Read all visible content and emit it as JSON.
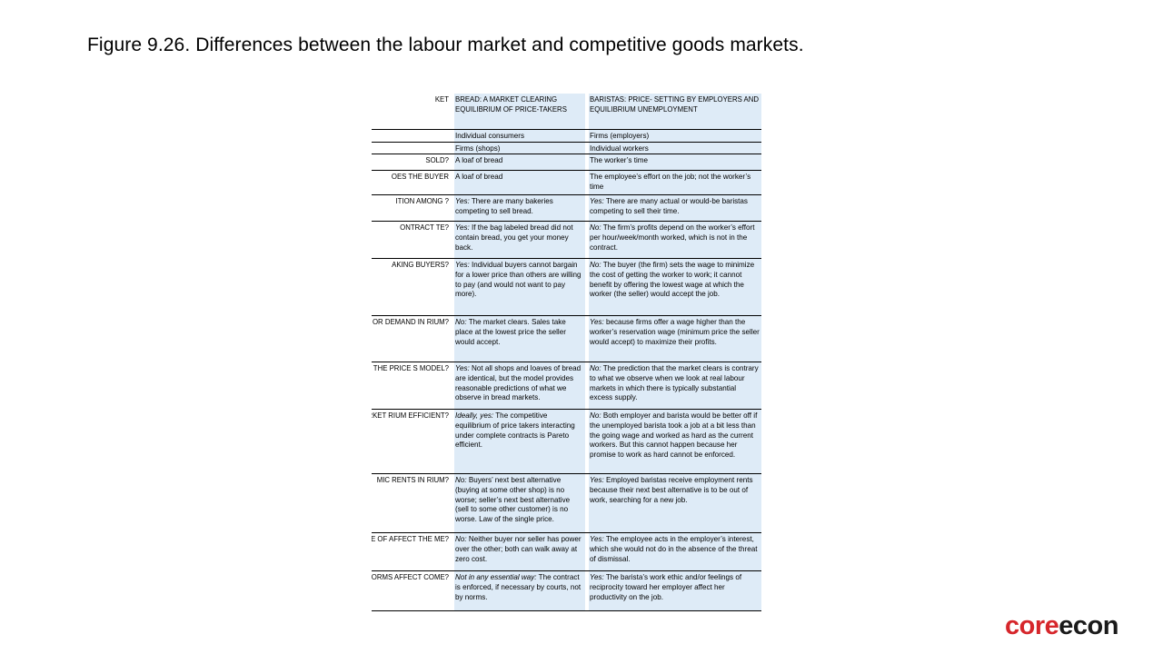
{
  "title": "Figure 9.26. Differences between the labour market and competitive goods markets.",
  "logo": {
    "part1": "core",
    "part2": "econ"
  },
  "table": {
    "headers": {
      "label": "KET",
      "bread": "BREAD: A MARKET CLEARING EQUILIBRIUM OF PRICE-TAKERS",
      "baristas": "BARISTAS: PRICE- SETTING BY EMPLOYERS AND EQUILIBRIUM UNEMPLOYMENT"
    },
    "rows": [
      {
        "label": "",
        "bread_em": "",
        "bread": "Individual consumers",
        "baristas_em": "",
        "baristas": "Firms (employers)"
      },
      {
        "label": "",
        "bread_em": "",
        "bread": "Firms (shops)",
        "baristas_em": "",
        "baristas": "Individual workers"
      },
      {
        "label": "SOLD?",
        "bread_em": "",
        "bread": "A loaf of bread",
        "baristas_em": "",
        "baristas": "The worker’s time"
      },
      {
        "label": "OES THE BUYER",
        "bread_em": "",
        "bread": "A loaf of bread",
        "baristas_em": "",
        "baristas": "The employee’s effort on the job; not the worker’s time"
      },
      {
        "label": "ITION AMONG ?",
        "bread_em": "Yes:",
        "bread": " There are many bakeries competing to sell bread.",
        "baristas_em": "Yes:",
        "baristas": " There are many actual or would-be baristas competing to sell their time."
      },
      {
        "label": "ONTRACT TE?",
        "bread_em": "Yes:",
        "bread": " If the bag labeled bread did not contain bread, you get your money back.",
        "baristas_em": "No:",
        "baristas": " The firm’s profits depend on the worker’s effort per hour/week/month worked, which is not in the contract."
      },
      {
        "label": "AKING BUYERS?",
        "bread_em": "Yes:",
        "bread": " Individual buyers cannot bargain for a lower price than others are willing to pay (and would not want to pay more).",
        "baristas_em": "No:",
        "baristas": " The buyer (the firm) sets the wage to minimize the cost of getting the worker to work; it cannot benefit by offering the lowest wage at which the worker (the seller) would accept the job."
      },
      {
        "label": "EXCESS OR DEMAND IN RIUM?",
        "bread_em": "No:",
        "bread": " The market clears. Sales take place at the lowest price the seller would accept.",
        "baristas_em": "Yes:",
        "baristas": " because firms offer a wage higher than the worker’s reservation wage (minimum price the seller would accept) to maximize their profits."
      },
      {
        "label": "USE THE PRICE S MODEL?",
        "bread_em": "Yes:",
        "bread": " Not all shops and loaves of bread are identical, but the model provides reasonable predictions of what we observe in bread markets.",
        "baristas_em": "No:",
        "baristas": " The prediction that the market clears is contrary to what we observe when we look at real labour markets in which there is typically substantial excess supply."
      },
      {
        "label": "ARKET RIUM EFFICIENT?",
        "bread_em": "Ideally, yes:",
        "bread": " The competitive equilibrium of price takers interacting under complete contracts is Pareto efficient.",
        "baristas_em": "No:",
        "baristas": " Both employer and barista would be better off if the unemployed barista took a job at a bit less than the going wage and worked as hard as the current workers. But this cannot happen because her promise to work as hard cannot be enforced."
      },
      {
        "label": "MIC RENTS IN RIUM?",
        "bread_em": "No:",
        "bread": " Buyers’ next best alternative (buying at some other shop) is no worse; seller’s next best alternative (sell to some other customer) is no worse. Law of the single price.",
        "baristas_em": "Yes:",
        "baristas": " Employed baristas receive employment rents because their next best alternative is to be out of work, searching for a new job."
      },
      {
        "label": "E EXERCISE OF AFFECT THE ME?",
        "bread_em": "No:",
        "bread": " Neither buyer nor seller has power over the other; both can walk away at zero cost.",
        "baristas_em": "Yes:",
        "baristas": " The employee acts in the employer’s interest, which she would not do in the absence of the threat of dismissal."
      },
      {
        "label": "AL NORMS AFFECT COME?",
        "bread_em": "Not in any essential way:",
        "bread": " The contract is enforced, if necessary by courts, not by norms.",
        "baristas_em": "Yes:",
        "baristas": " The barista’s work ethic and/or feelings of reciprocity toward her employer affect her productivity on the job."
      }
    ]
  }
}
